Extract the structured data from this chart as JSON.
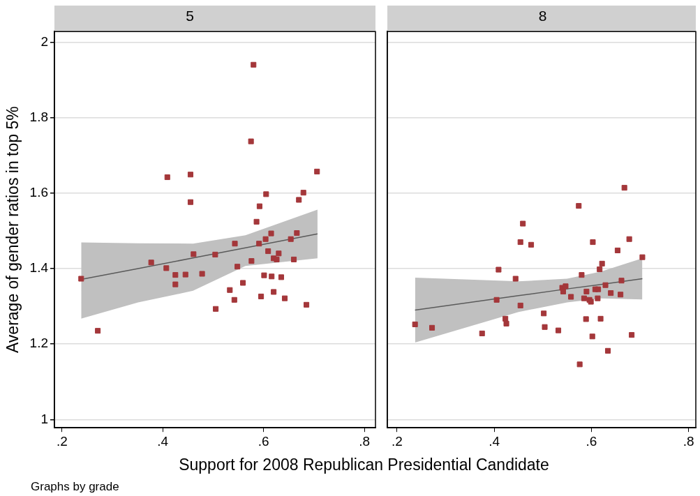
{
  "chart_data": [
    {
      "type": "scatter",
      "title": "5",
      "xlabel": "Support for 2008 Republican Presidential Candidate",
      "ylabel": "Average of gender ratios in top 5%",
      "annotations": [
        "Graphs by grade"
      ],
      "xlim": [
        0.185,
        0.822
      ],
      "ylim": [
        0.978,
        2.028
      ],
      "xticks": [
        {
          "value": 0.2,
          "label": ".2"
        },
        {
          "value": 0.4,
          "label": ".4"
        },
        {
          "value": 0.6,
          "label": ".6"
        },
        {
          "value": 0.8,
          "label": ".8"
        }
      ],
      "yticks": [
        1,
        1.2,
        1.4,
        1.6,
        1.8,
        2
      ],
      "grid": "y",
      "legend": false,
      "series": [
        {
          "type": "line",
          "marker": "none",
          "color": "#5a5a5a",
          "x": [
            0.238,
            0.351,
            0.46,
            0.564,
            0.707
          ],
          "values": [
            1.371,
            1.4,
            1.428,
            1.455,
            1.492
          ],
          "lower": [
            1.267,
            1.31,
            1.341,
            1.407,
            1.427
          ],
          "upper": [
            1.469,
            1.467,
            1.466,
            1.488,
            1.556
          ]
        },
        {
          "marker": "square",
          "color": "#a4373a",
          "x": [
            0.238,
            0.271,
            0.377,
            0.407,
            0.409,
            0.425,
            0.425,
            0.445,
            0.455,
            0.455,
            0.461,
            0.478,
            0.504,
            0.505,
            0.533,
            0.542,
            0.543,
            0.548,
            0.559,
            0.576,
            0.575,
            0.58,
            0.586,
            0.592,
            0.591,
            0.595,
            0.601,
            0.604,
            0.605,
            0.609,
            0.615,
            0.616,
            0.62,
            0.62,
            0.626,
            0.63,
            0.635,
            0.642,
            0.654,
            0.66,
            0.666,
            0.67,
            0.679,
            0.685,
            0.706
          ],
          "values": [
            1.373,
            1.235,
            1.416,
            1.401,
            1.642,
            1.383,
            1.358,
            1.384,
            1.649,
            1.576,
            1.438,
            1.386,
            1.437,
            1.293,
            1.343,
            1.317,
            1.466,
            1.405,
            1.362,
            1.42,
            1.737,
            1.94,
            1.524,
            1.565,
            1.466,
            1.326,
            1.382,
            1.478,
            1.597,
            1.446,
            1.493,
            1.379,
            1.338,
            1.427,
            1.424,
            1.44,
            1.377,
            1.321,
            1.478,
            1.424,
            1.494,
            1.582,
            1.601,
            1.304,
            1.657
          ]
        }
      ]
    },
    {
      "type": "scatter",
      "title": "8",
      "tick_labels": "x",
      "xlim": [
        0.18,
        0.815
      ],
      "ylim": [
        0.978,
        2.028
      ],
      "xticks": [
        {
          "value": 0.2,
          "label": ".2"
        },
        {
          "value": 0.4,
          "label": ".4"
        },
        {
          "value": 0.6,
          "label": ".6"
        },
        {
          "value": 0.8,
          "label": ".8"
        }
      ],
      "yticks": [
        1,
        1.2,
        1.4,
        1.6,
        1.8,
        2
      ],
      "grid": "y",
      "legend": false,
      "series": [
        {
          "type": "line",
          "marker": "none",
          "color": "#5a5a5a",
          "x": [
            0.237,
            0.45,
            0.55,
            0.62,
            0.705
          ],
          "values": [
            1.29,
            1.328,
            1.346,
            1.358,
            1.373
          ],
          "lower": [
            1.204,
            1.285,
            1.31,
            1.321,
            1.318
          ],
          "upper": [
            1.376,
            1.366,
            1.373,
            1.392,
            1.427
          ]
        },
        {
          "marker": "square",
          "color": "#a4373a",
          "x": [
            0.237,
            0.272,
            0.375,
            0.409,
            0.405,
            0.423,
            0.425,
            0.444,
            0.454,
            0.459,
            0.454,
            0.476,
            0.502,
            0.504,
            0.532,
            0.54,
            0.547,
            0.542,
            0.558,
            0.574,
            0.576,
            0.58,
            0.585,
            0.589,
            0.59,
            0.596,
            0.599,
            0.603,
            0.602,
            0.608,
            0.613,
            0.614,
            0.617,
            0.622,
            0.619,
            0.629,
            0.634,
            0.64,
            0.654,
            0.66,
            0.662,
            0.668,
            0.678,
            0.683,
            0.705
          ],
          "values": [
            1.252,
            1.243,
            1.228,
            1.397,
            1.317,
            1.267,
            1.254,
            1.373,
            1.47,
            1.519,
            1.302,
            1.463,
            1.281,
            1.245,
            1.236,
            1.349,
            1.353,
            1.339,
            1.325,
            1.566,
            1.146,
            1.383,
            1.321,
            1.266,
            1.339,
            1.317,
            1.312,
            1.47,
            1.22,
            1.345,
            1.321,
            1.345,
            1.398,
            1.413,
            1.267,
            1.356,
            1.182,
            1.335,
            1.448,
            1.331,
            1.368,
            1.614,
            1.478,
            1.224,
            1.43
          ]
        }
      ]
    }
  ]
}
